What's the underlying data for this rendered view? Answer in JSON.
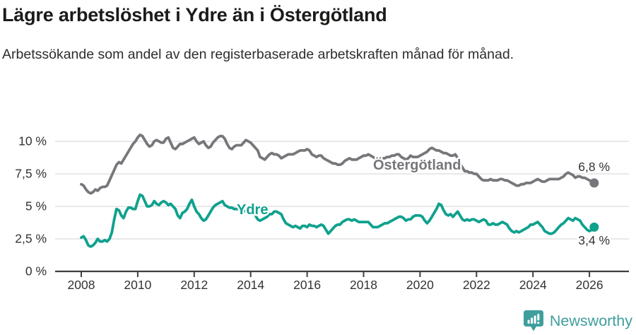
{
  "header": {
    "title": "Lägre arbetslöshet i Ydre än i Östergötland",
    "subtitle": "Arbetssökande som andel av den registerbaserade arbetskraften månad för månad."
  },
  "footer": {
    "brand": "Newsworthy",
    "logo_icon": "bar-chart-speech-bubble-icon"
  },
  "colors": {
    "title_text": "#1b1b1a",
    "subtitle_text": "#2d2d2d",
    "axis_text": "#333333",
    "grid": "#dcdcdc",
    "axis_line": "#3f3f3f",
    "ostergotland_line": "#76777b",
    "ydre_line": "#10a18e",
    "brand_teal": "#3f9e9c"
  },
  "chart_data": {
    "type": "line",
    "unit": "%",
    "x_start_year": 2008,
    "x_step_months": 1,
    "grid": "horizontal-only",
    "legend_position": "inline-labels",
    "ylim": [
      0,
      11
    ],
    "yticks": [
      {
        "label": "0 %",
        "value": 0
      },
      {
        "label": "2,5 %",
        "value": 2.5
      },
      {
        "label": "5 %",
        "value": 5
      },
      {
        "label": "7,5 %",
        "value": 7.5
      },
      {
        "label": "10 %",
        "value": 10
      }
    ],
    "xticks": [
      2008,
      2010,
      2012,
      2014,
      2016,
      2018,
      2020,
      2022,
      2024,
      2026
    ],
    "series": [
      {
        "name": "Östergötland",
        "color": "#76777b",
        "end_label": "6,8 %",
        "end_value": 6.8,
        "values": [
          6.7,
          6.6,
          6.3,
          6.1,
          6.0,
          6.1,
          6.3,
          6.2,
          6.4,
          6.5,
          6.5,
          6.6,
          7.0,
          7.4,
          7.8,
          8.2,
          8.4,
          8.3,
          8.6,
          8.9,
          9.2,
          9.5,
          9.8,
          10.0,
          10.3,
          10.5,
          10.4,
          10.1,
          9.8,
          9.6,
          9.7,
          10.0,
          10.1,
          10.0,
          9.9,
          9.9,
          10.2,
          10.3,
          9.9,
          9.5,
          9.4,
          9.6,
          9.8,
          9.8,
          9.9,
          10.0,
          10.1,
          10.2,
          10.3,
          10.0,
          9.8,
          9.9,
          10.0,
          9.7,
          9.5,
          9.6,
          9.9,
          10.1,
          10.3,
          10.4,
          10.4,
          10.2,
          9.8,
          9.5,
          9.4,
          9.6,
          9.7,
          9.7,
          9.7,
          9.9,
          10.1,
          10.0,
          9.9,
          9.7,
          9.5,
          9.3,
          8.8,
          8.7,
          8.6,
          8.8,
          9.0,
          9.1,
          9.0,
          9.0,
          8.9,
          8.7,
          8.8,
          8.9,
          9.0,
          9.0,
          9.0,
          9.1,
          9.2,
          9.3,
          9.3,
          9.3,
          9.4,
          9.3,
          9.0,
          8.9,
          8.8,
          8.9,
          8.9,
          8.7,
          8.6,
          8.5,
          8.4,
          8.3,
          8.3,
          8.2,
          8.2,
          8.3,
          8.5,
          8.6,
          8.7,
          8.6,
          8.6,
          8.6,
          8.7,
          8.8,
          8.9,
          8.9,
          9.0,
          8.9,
          8.8,
          8.7,
          8.6,
          8.6,
          8.7,
          8.7,
          8.8,
          8.8,
          8.9,
          8.9,
          9.0,
          9.0,
          8.8,
          8.7,
          8.6,
          8.7,
          8.9,
          8.8,
          8.8,
          8.8,
          8.9,
          9.0,
          9.1,
          9.2,
          9.4,
          9.5,
          9.4,
          9.3,
          9.3,
          9.2,
          9.1,
          9.1,
          9.0,
          8.9,
          8.9,
          9.0,
          8.7,
          8.3,
          8.0,
          7.7,
          7.7,
          7.6,
          7.6,
          7.5,
          7.5,
          7.3,
          7.1,
          7.0,
          7.0,
          7.0,
          7.1,
          7.0,
          7.0,
          7.0,
          7.1,
          7.1,
          7.0,
          7.0,
          6.9,
          6.8,
          6.7,
          6.6,
          6.6,
          6.7,
          6.7,
          6.8,
          6.8,
          6.8,
          6.9,
          7.0,
          7.1,
          7.0,
          6.9,
          6.9,
          7.0,
          7.1,
          7.1,
          7.1,
          7.1,
          7.1,
          7.2,
          7.3,
          7.5,
          7.6,
          7.5,
          7.4,
          7.2,
          7.3,
          7.3,
          7.2,
          7.2,
          7.1,
          7.0,
          6.9,
          6.8
        ]
      },
      {
        "name": "Ydre",
        "color": "#10a18e",
        "end_label": "3,4 %",
        "end_value": 3.4,
        "values": [
          2.6,
          2.7,
          2.4,
          2.0,
          1.9,
          2.0,
          2.2,
          2.5,
          2.3,
          2.3,
          2.4,
          2.3,
          2.5,
          3.0,
          4.0,
          4.8,
          4.7,
          4.3,
          4.1,
          4.6,
          4.9,
          4.9,
          4.8,
          4.8,
          5.4,
          5.9,
          5.8,
          5.4,
          5.0,
          5.0,
          5.1,
          5.4,
          5.2,
          5.1,
          5.3,
          5.4,
          5.3,
          5.1,
          5.2,
          5.0,
          4.8,
          4.3,
          4.1,
          4.5,
          4.6,
          4.8,
          5.2,
          5.5,
          5.0,
          4.6,
          4.4,
          4.1,
          3.9,
          4.0,
          4.3,
          4.6,
          4.9,
          5.1,
          5.2,
          5.3,
          5.4,
          5.1,
          5.0,
          4.9,
          4.9,
          4.8,
          4.8,
          4.8,
          4.7,
          4.6,
          4.7,
          4.7,
          4.6,
          4.5,
          4.3,
          4.0,
          3.9,
          4.0,
          4.1,
          4.2,
          4.4,
          4.4,
          4.6,
          4.6,
          4.5,
          4.4,
          4.0,
          3.7,
          3.6,
          3.5,
          3.4,
          3.5,
          3.4,
          3.3,
          3.5,
          3.5,
          3.4,
          3.6,
          3.5,
          3.5,
          3.4,
          3.5,
          3.6,
          3.5,
          3.2,
          2.9,
          3.1,
          3.3,
          3.5,
          3.6,
          3.6,
          3.8,
          3.9,
          4.0,
          4.0,
          3.9,
          4.0,
          3.9,
          3.8,
          3.8,
          3.8,
          3.8,
          3.8,
          3.6,
          3.4,
          3.4,
          3.4,
          3.5,
          3.6,
          3.7,
          3.7,
          3.8,
          3.9,
          4.0,
          4.1,
          4.2,
          4.2,
          4.1,
          3.9,
          4.0,
          4.0,
          4.2,
          4.3,
          4.3,
          4.3,
          4.2,
          3.9,
          3.7,
          3.9,
          4.2,
          4.5,
          4.8,
          5.2,
          5.1,
          4.7,
          4.4,
          4.3,
          4.4,
          4.2,
          4.4,
          4.6,
          4.3,
          4.0,
          3.9,
          4.0,
          3.9,
          4.0,
          4.0,
          3.9,
          3.8,
          3.9,
          4.0,
          3.9,
          3.6,
          3.6,
          3.7,
          3.6,
          3.6,
          3.7,
          3.8,
          3.7,
          3.6,
          3.3,
          3.1,
          3.0,
          3.1,
          3.0,
          3.1,
          3.2,
          3.3,
          3.4,
          3.6,
          3.6,
          3.7,
          3.8,
          3.6,
          3.4,
          3.1,
          3.0,
          2.9,
          2.9,
          3.0,
          3.2,
          3.4,
          3.6,
          3.7,
          3.9,
          4.1,
          4.0,
          3.9,
          4.1,
          4.0,
          3.9,
          3.6,
          3.4,
          3.2,
          3.1,
          3.2,
          3.4
        ]
      }
    ]
  }
}
